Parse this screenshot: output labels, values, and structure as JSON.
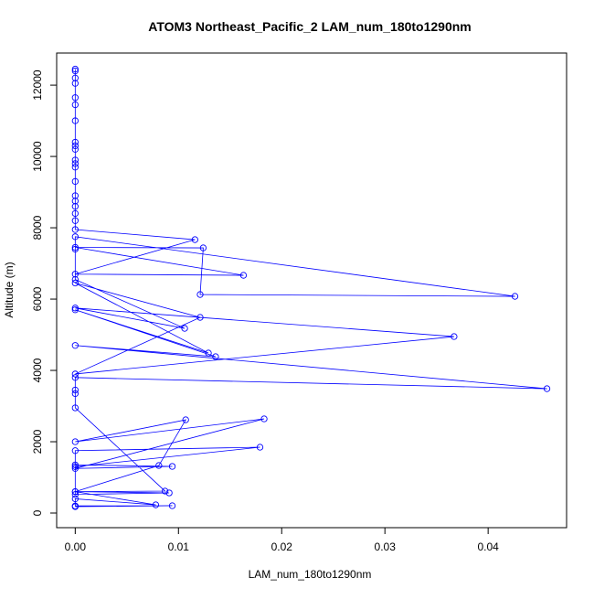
{
  "chart_data": {
    "type": "line",
    "marker": "circle",
    "title": "ATOM3 Northeast_Pacific_2 LAM_num_180to1290nm",
    "x_label": "LAM_num_180to1290nm",
    "y_label": "Altitude (m)",
    "color": "#0000ff",
    "x": [
      0,
      0,
      0,
      0,
      0,
      0,
      0,
      0,
      0,
      0,
      0,
      0,
      0,
      0,
      0,
      0,
      0,
      0,
      0,
      0,
      0.0116,
      0,
      0.0163,
      0,
      0.0124,
      0.0121,
      0.0426,
      0,
      0,
      0,
      0.0106,
      0,
      0.0367,
      0,
      0.0121,
      0,
      0.0129,
      0,
      0.0136,
      0,
      0.0457,
      0,
      0,
      0,
      0,
      0.0087,
      0,
      0.0091,
      0,
      0,
      0.0179,
      0,
      0,
      0.0094,
      0,
      0.0183,
      0,
      0.0107,
      0.0081,
      0,
      0.0078,
      0,
      0,
      0.0094,
      0
    ],
    "values": [
      12450,
      12400,
      12200,
      12050,
      11650,
      11450,
      11000,
      10400,
      10300,
      10200,
      9900,
      9800,
      9700,
      9300,
      8900,
      8750,
      8600,
      8400,
      8200,
      7950,
      7667,
      6700,
      6667,
      7450,
      7436,
      6128,
      6077,
      7750,
      7400,
      6550,
      5179,
      5750,
      4949,
      3900,
      5487,
      6450,
      4487,
      5700,
      4385,
      4700,
      3487,
      3800,
      3450,
      3350,
      2950,
      615,
      600,
      565,
      520,
      1300,
      1846,
      1750,
      1350,
      1308,
      1250,
      2641,
      2000,
      2615,
      1333,
      600,
      230,
      400,
      200,
      205,
      180
    ],
    "xlim": [
      -0.0018,
      0.0476
    ],
    "ylim": [
      -410,
      12900
    ],
    "xticks": [
      {
        "value": 0,
        "label": "0.00"
      },
      0.01,
      0.02,
      0.03,
      0.04
    ],
    "yticks": [
      0,
      2000,
      4000,
      6000,
      8000,
      10000,
      12000
    ]
  }
}
